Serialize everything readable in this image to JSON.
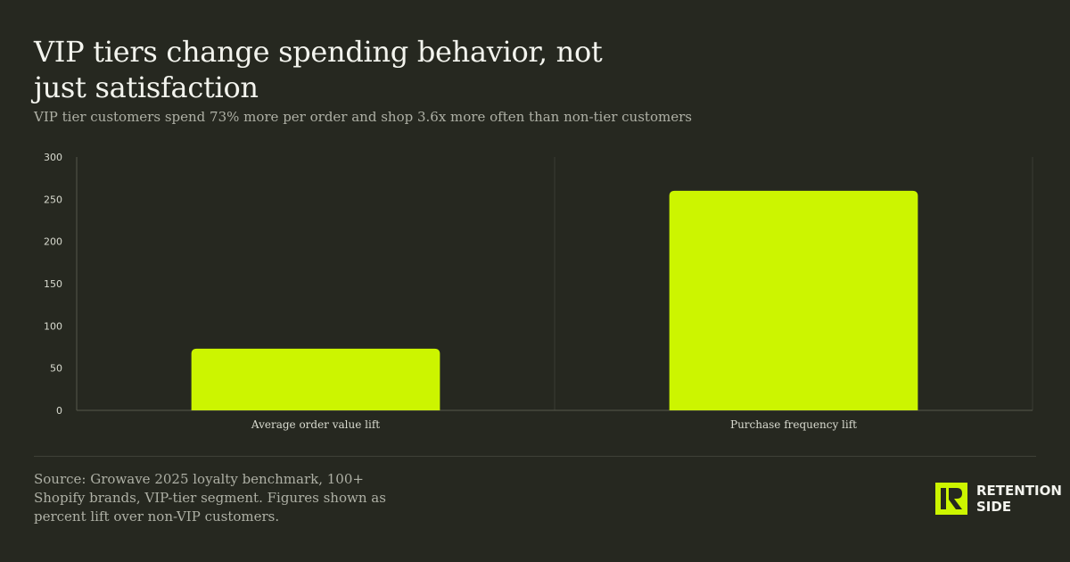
{
  "header": {
    "title": "VIP tiers change spending behavior, not just satisfaction",
    "subtitle": "VIP tier customers spend 73% more per order and shop 3.6x more often than non-tier customers"
  },
  "chart_data": {
    "type": "bar",
    "categories": [
      "Average order value lift",
      "Purchase frequency lift"
    ],
    "values": [
      73,
      260
    ],
    "ylim": [
      0,
      300
    ],
    "yticks": [
      0,
      50,
      100,
      150,
      200,
      250,
      300
    ],
    "xlabel": "",
    "ylabel": "",
    "grid": "vertical separators",
    "colors": {
      "bar": "#ccf500",
      "axis": "#55574d",
      "grid": "#3a3c33",
      "tick_text": "#d9dbd0"
    }
  },
  "footer": {
    "source": "Source: Growave 2025 loyalty benchmark, 100+ Shopify brands, VIP-tier segment. Figures shown as percent lift over non-VIP customers."
  },
  "brand": {
    "name_line1": "RETENTION",
    "name_line2": "SIDE",
    "icon": "retention-side-logo-icon",
    "accent": "#ccf500"
  }
}
